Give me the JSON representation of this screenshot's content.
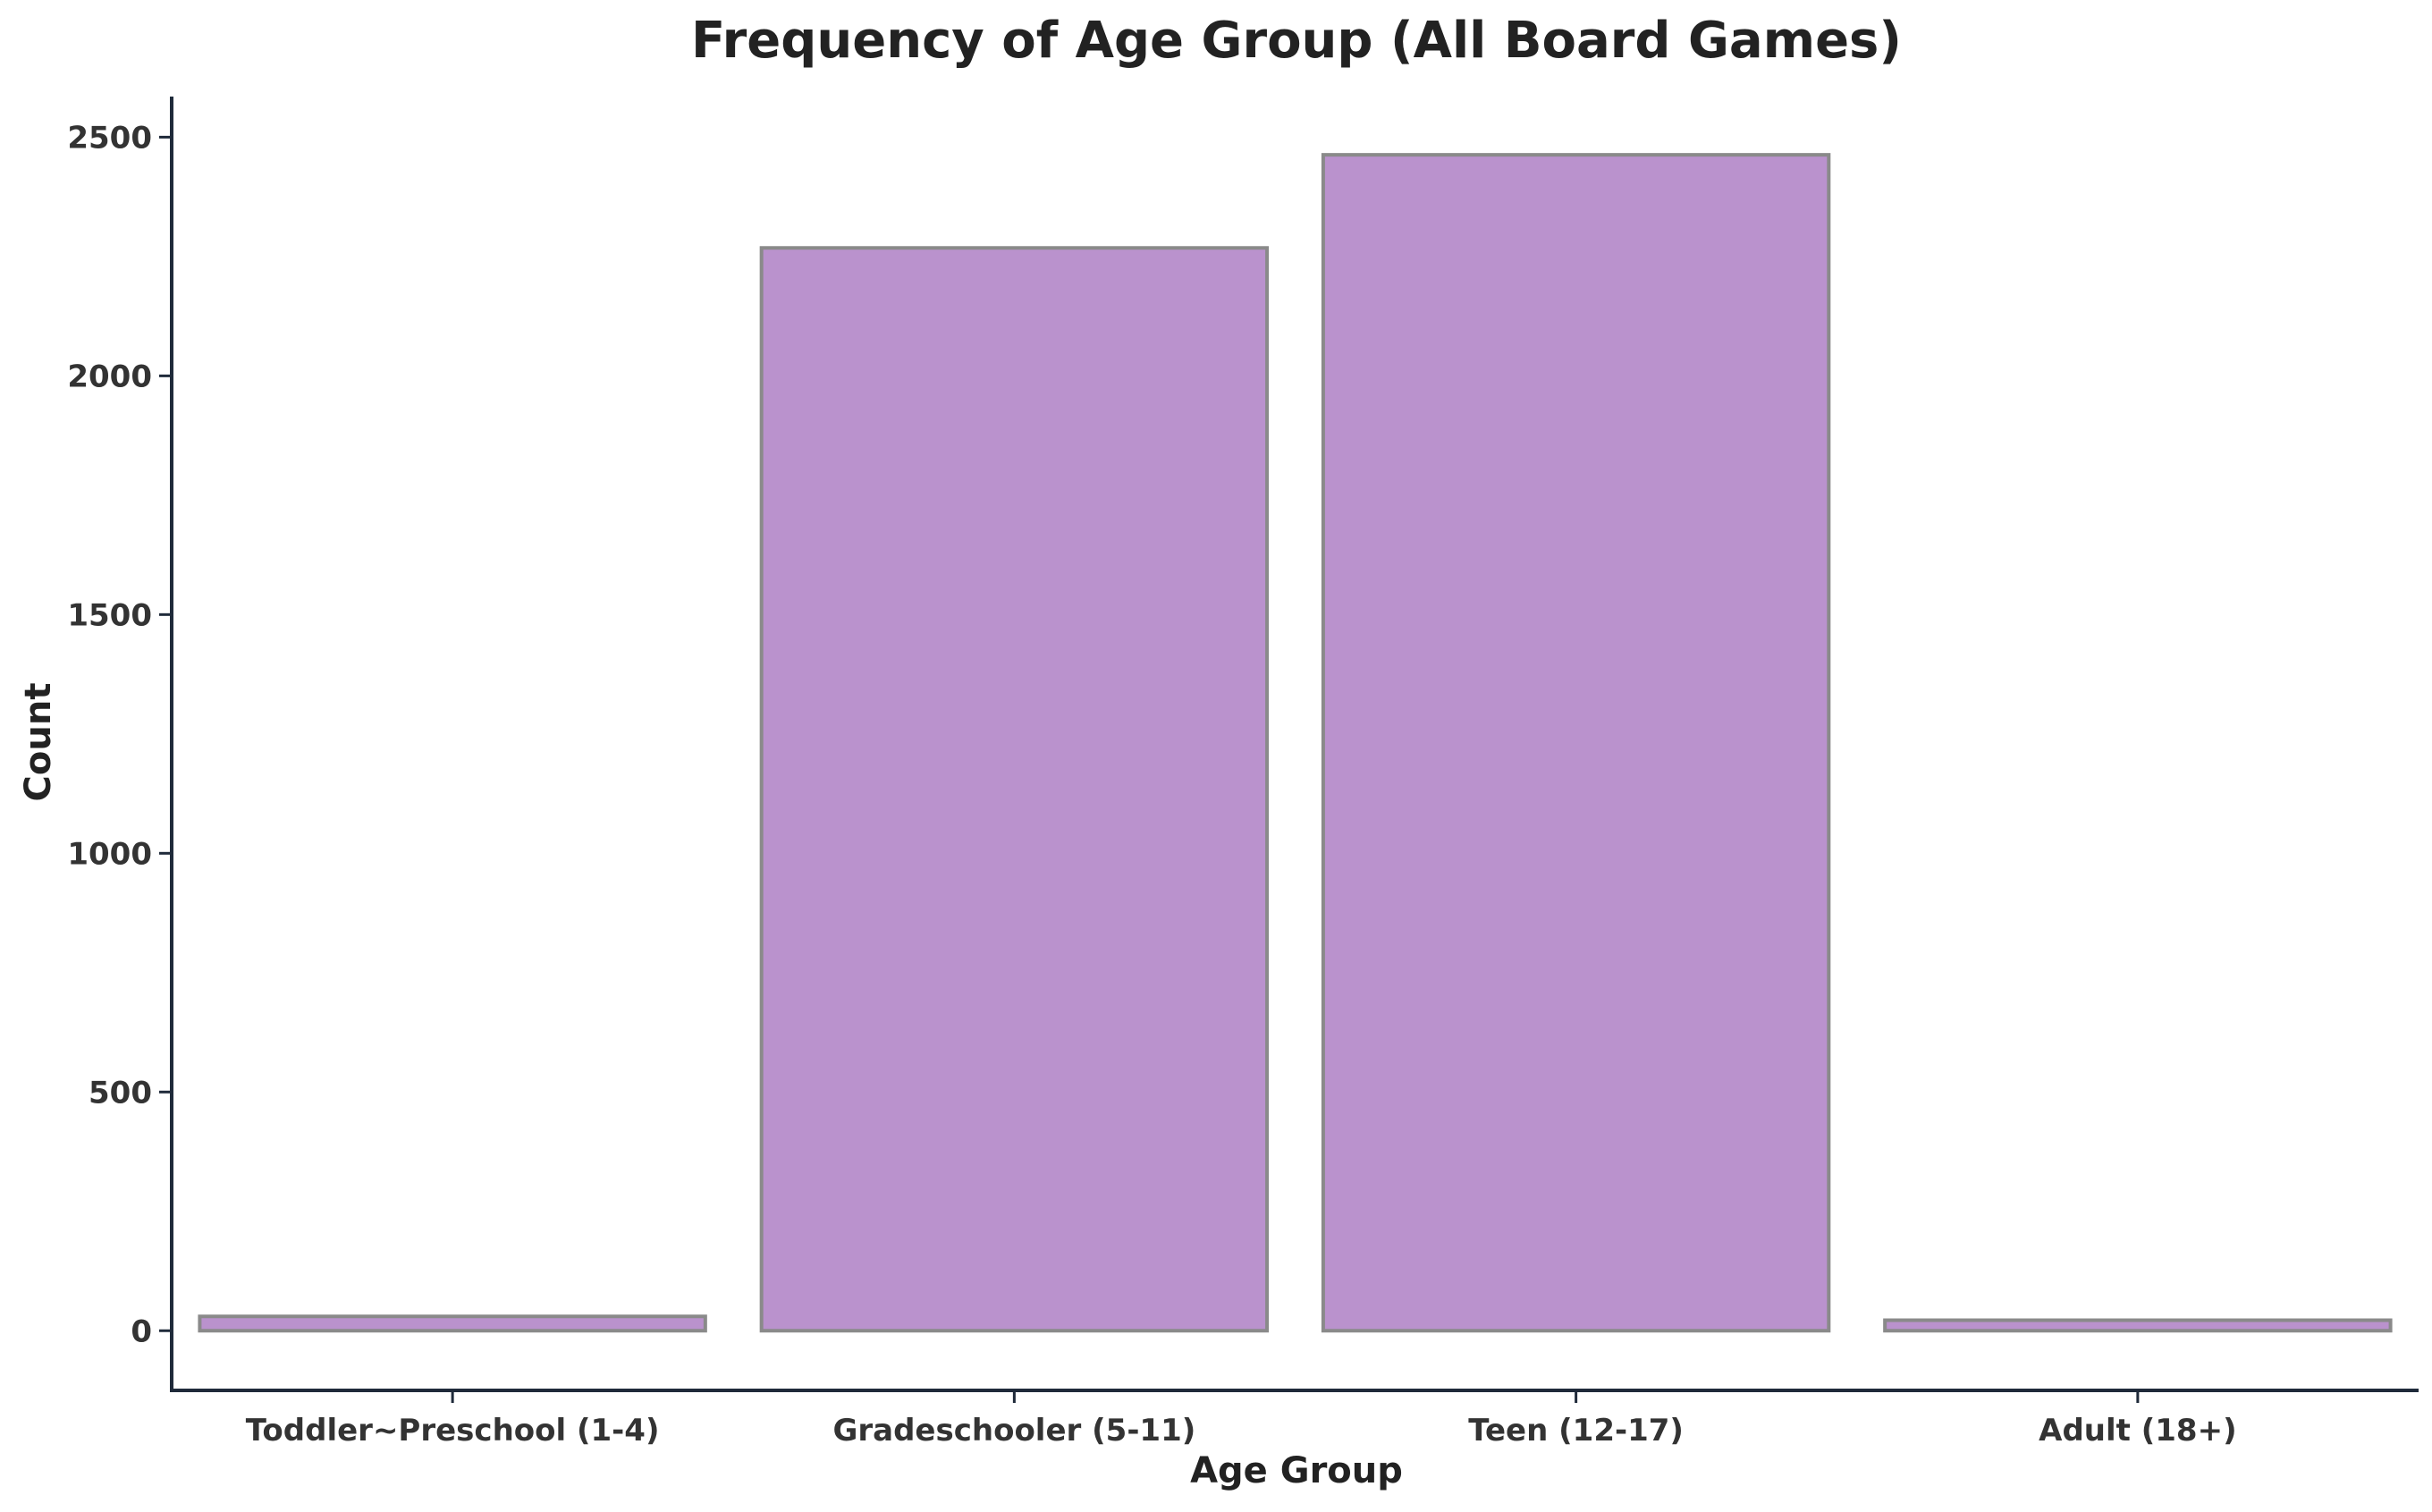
{
  "chart_data": {
    "type": "bar",
    "title": "Frequency of Age Group (All Board Games)",
    "xlabel": "Age Group",
    "ylabel": "Count",
    "categories": [
      "Toddler~Preschool (1-4)",
      "Gradeschooler (5-11)",
      "Teen (12-17)",
      "Adult (18+)"
    ],
    "values": [
      30,
      2268,
      2463,
      22
    ],
    "ylim": [
      -125,
      2585
    ],
    "yticks": [
      0,
      500,
      1000,
      1500,
      2000,
      2500
    ],
    "grid": false,
    "legend": "none",
    "colors": {
      "bar_fill": "#ba92cd",
      "bar_outline": "#8a8a8a",
      "axis": "#1f2a3a"
    }
  }
}
